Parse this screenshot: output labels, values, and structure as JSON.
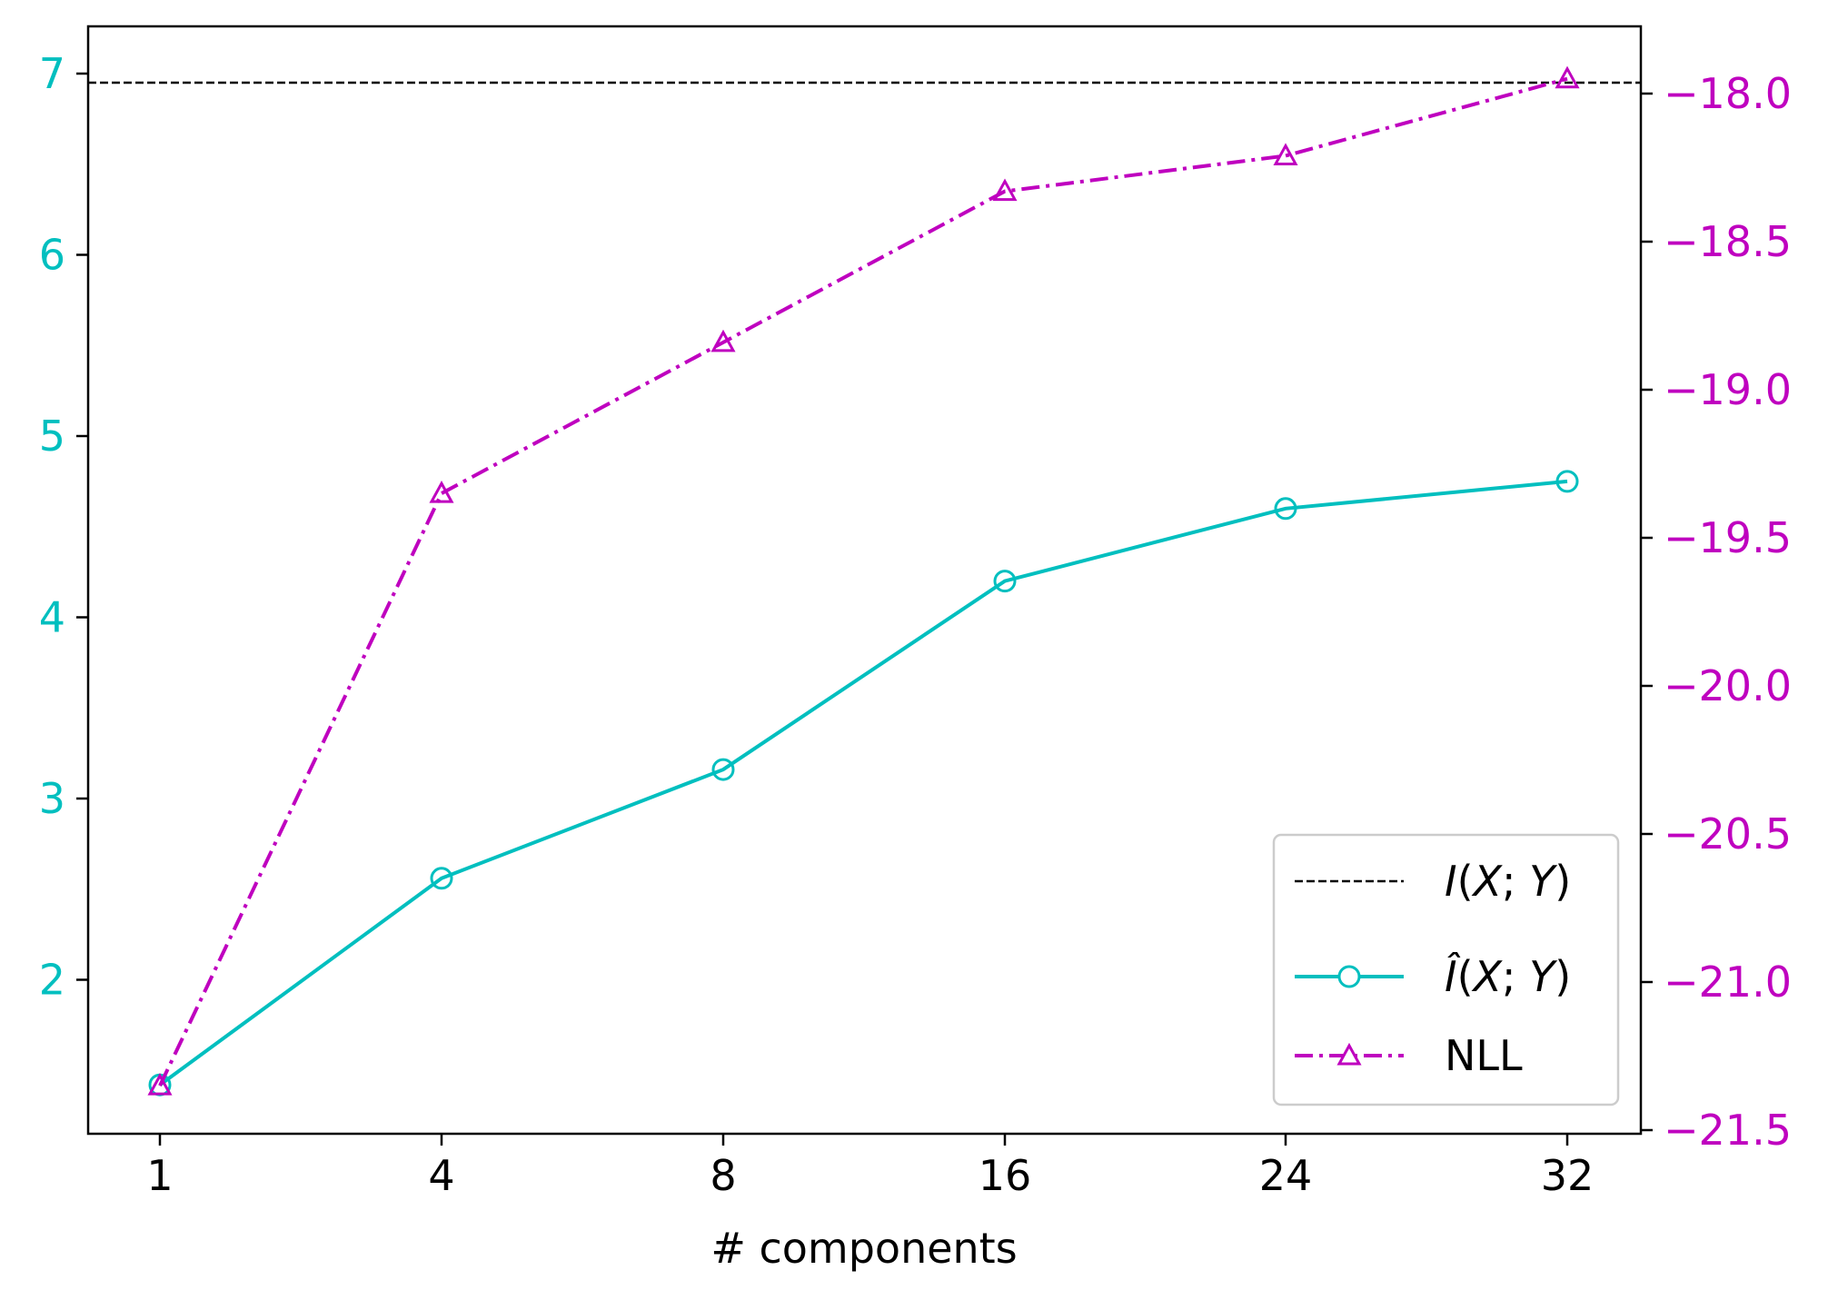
{
  "chart_data": {
    "type": "line",
    "categories": [
      "1",
      "4",
      "8",
      "16",
      "24",
      "32"
    ],
    "xlabel": "# components",
    "left_axis": {
      "color": "#00bfbf",
      "ticks": [
        2,
        3,
        4,
        5,
        6,
        7
      ]
    },
    "right_axis": {
      "color": "#bf00bf",
      "ticks": [
        -18.0,
        -18.5,
        -19.0,
        -19.5,
        -20.0,
        -20.5,
        -21.0,
        -21.5
      ],
      "tick_labels": [
        "−18.0",
        "−18.5",
        "−19.0",
        "−19.5",
        "−20.0",
        "−20.5",
        "−21.0",
        "−21.5"
      ]
    },
    "reference_line": {
      "name": "I(X; Y)",
      "value": 6.95,
      "axis": "left",
      "color": "#000000",
      "style": "dashed"
    },
    "series": [
      {
        "name": "Î(X; Y)",
        "axis": "left",
        "color": "#00bfbf",
        "marker": "circle",
        "style": "solid",
        "values": [
          1.42,
          2.56,
          3.16,
          4.2,
          4.6,
          4.75
        ]
      },
      {
        "name": "NLL",
        "axis": "right",
        "color": "#bf00bf",
        "marker": "triangle",
        "style": "dashdot",
        "values": [
          -21.35,
          -19.35,
          -18.84,
          -18.33,
          -18.21,
          -17.95
        ]
      }
    ],
    "legend": {
      "placement": "lower-right",
      "entries": [
        {
          "label_main": "I",
          "label_rest": "(X; Y)",
          "italic_parts": [
            "I",
            "X",
            "Y"
          ]
        },
        {
          "label_main": "Î",
          "label_rest": "(X; Y)",
          "italic_parts": [
            "Î",
            "X",
            "Y"
          ]
        },
        {
          "label_main": "NLL",
          "label_rest": ""
        }
      ]
    },
    "grid": false
  }
}
